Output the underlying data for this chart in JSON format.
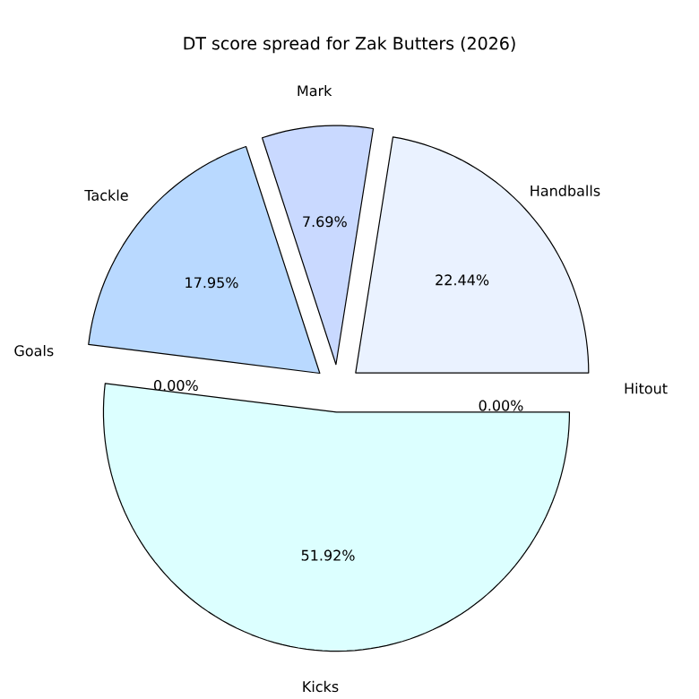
{
  "chart_data": {
    "type": "pie",
    "title": "DT score spread for Zak Butters (2026)",
    "categories": [
      "Handballs",
      "Mark",
      "Tackle",
      "Goals",
      "Kicks",
      "Hitout"
    ],
    "values": [
      22.44,
      7.69,
      17.95,
      0,
      51.92,
      0
    ],
    "value_labels": [
      "22.44%",
      "7.69%",
      "17.95%",
      "0.00%",
      "51.92%",
      "0.00%"
    ],
    "colors": [
      "#eaf2ff",
      "#c9d9ff",
      "#b9d9ff",
      "#a9c9ff",
      "#dcffff",
      "#f0f8ff"
    ]
  }
}
